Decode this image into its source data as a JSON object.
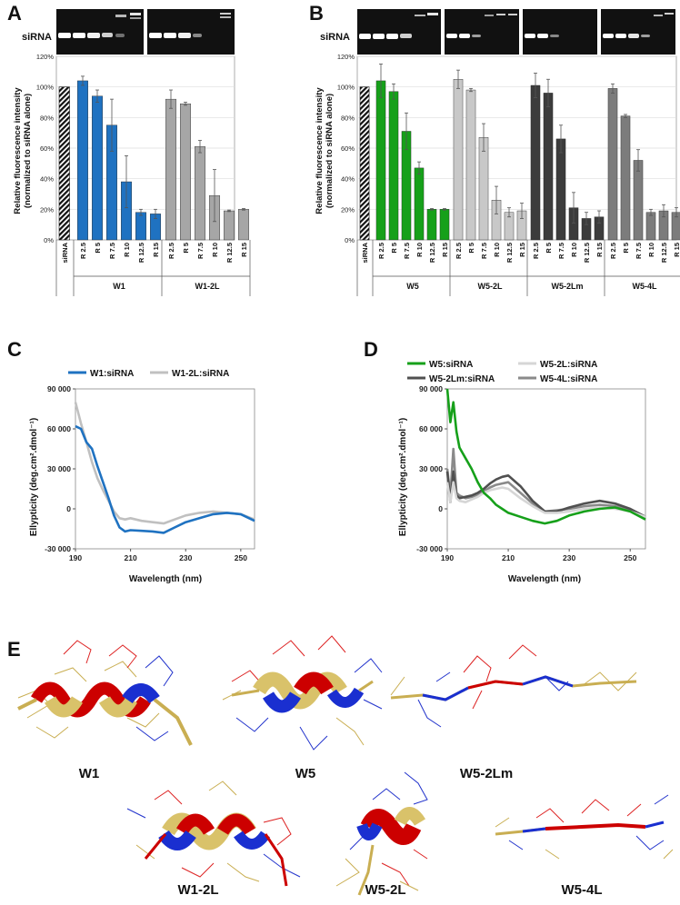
{
  "panels": {
    "a": "A",
    "b": "B",
    "c": "C",
    "d": "D",
    "e": "E"
  },
  "gel_label": "siRNA",
  "y_axis_label_line1": "Relative fluorescence intensity",
  "y_axis_label_line2": "(normalized to siRNA alone)",
  "cd_y_label": "Ellypticity (deg.cm².dmol⁻¹)",
  "cd_x_label": "Wavelength (nm)",
  "chart_data": [
    {
      "id": "A",
      "type": "bar",
      "ylim": [
        0,
        120
      ],
      "yticks": [
        "0%",
        "20%",
        "40%",
        "60%",
        "80%",
        "100%",
        "120%"
      ],
      "reference": {
        "label": "siRNA",
        "value": 100
      },
      "groups": [
        {
          "name": "W1",
          "color": "#1f72c1",
          "categories": [
            "R 2.5",
            "R 5",
            "R 7.5",
            "R 10",
            "R 12.5",
            "R 15"
          ],
          "values": [
            104,
            94,
            75,
            38,
            18,
            17
          ],
          "errors": [
            3,
            4,
            17,
            17,
            2,
            3
          ]
        },
        {
          "name": "W1-2L",
          "color": "#a6a6a6",
          "categories": [
            "R 2.5",
            "R 5",
            "R 7.5",
            "R 10",
            "R 12.5",
            "R 15"
          ],
          "values": [
            92,
            89,
            61,
            29,
            19,
            20
          ],
          "errors": [
            6,
            1,
            4,
            17,
            0.5,
            0.5
          ]
        }
      ]
    },
    {
      "id": "B",
      "type": "bar",
      "ylim": [
        0,
        120
      ],
      "yticks": [
        "0%",
        "20%",
        "40%",
        "60%",
        "80%",
        "100%",
        "120%"
      ],
      "reference": {
        "label": "siRNA",
        "value": 100
      },
      "groups": [
        {
          "name": "W5",
          "color": "#16a01a",
          "categories": [
            "R 2.5",
            "R 5",
            "R 7.5",
            "R 10",
            "R 12.5",
            "R 15"
          ],
          "values": [
            104,
            97,
            71,
            47,
            20,
            20
          ],
          "errors": [
            11,
            5,
            12,
            4,
            0.5,
            0.5
          ]
        },
        {
          "name": "W5-2L",
          "color": "#c8c8c8",
          "categories": [
            "R 2.5",
            "R 5",
            "R 7.5",
            "R 10",
            "R 12.5",
            "R 15"
          ],
          "values": [
            105,
            98,
            67,
            26,
            18,
            19
          ],
          "errors": [
            6,
            1,
            9,
            9,
            3,
            5
          ]
        },
        {
          "name": "W5-2Lm",
          "color": "#3c3c3c",
          "categories": [
            "R 2.5",
            "R 5",
            "R 7.5",
            "R 10",
            "R 12.5",
            "R 15"
          ],
          "values": [
            101,
            96,
            66,
            21,
            14,
            15
          ],
          "errors": [
            8,
            9,
            9,
            10,
            4,
            4
          ]
        },
        {
          "name": "W5-4L",
          "color": "#7c7c7c",
          "categories": [
            "R 2.5",
            "R 5",
            "R 7.5",
            "R 10",
            "R 12.5",
            "R 15"
          ],
          "values": [
            99,
            81,
            52,
            18,
            19,
            18
          ],
          "errors": [
            3,
            1,
            7,
            2,
            4,
            3
          ]
        }
      ]
    },
    {
      "id": "C",
      "type": "line",
      "xlim": [
        190,
        255
      ],
      "ylim": [
        -30000,
        90000
      ],
      "xticks": [
        "190",
        "210",
        "230",
        "250"
      ],
      "yticks": [
        "-30 000",
        "0",
        "30 000",
        "60 000",
        "90 000"
      ],
      "series": [
        {
          "name": "W1:siRNA",
          "color": "#1f72c1",
          "x": [
            190,
            192,
            194,
            196,
            198,
            200,
            202,
            204,
            206,
            208,
            210,
            214,
            218,
            222,
            226,
            230,
            235,
            240,
            245,
            250,
            255
          ],
          "y": [
            62000,
            60000,
            50000,
            45000,
            32000,
            20000,
            8000,
            -5000,
            -14000,
            -17000,
            -16000,
            -16500,
            -17000,
            -18000,
            -14000,
            -10000,
            -7000,
            -4000,
            -3000,
            -4000,
            -9000
          ]
        },
        {
          "name": "W1-2L:siRNA",
          "color": "#c0c0c0",
          "x": [
            190,
            192,
            194,
            196,
            198,
            200,
            202,
            204,
            206,
            208,
            210,
            214,
            218,
            222,
            226,
            230,
            235,
            240,
            245,
            250,
            255
          ],
          "y": [
            80000,
            64000,
            50000,
            35000,
            23000,
            14000,
            6000,
            -2000,
            -7000,
            -8000,
            -7000,
            -9000,
            -10000,
            -11000,
            -8000,
            -5000,
            -3000,
            -2000,
            -3000,
            -4000,
            -8000
          ]
        }
      ]
    },
    {
      "id": "D",
      "type": "line",
      "xlim": [
        190,
        255
      ],
      "ylim": [
        -30000,
        90000
      ],
      "xticks": [
        "190",
        "210",
        "230",
        "250"
      ],
      "yticks": [
        "-30 000",
        "0",
        "30 000",
        "60 000",
        "90 000"
      ],
      "series": [
        {
          "name": "W5:siRNA",
          "color": "#16a01a",
          "x": [
            190,
            191,
            192,
            193,
            194,
            196,
            198,
            200,
            202,
            204,
            206,
            208,
            210,
            214,
            218,
            222,
            226,
            230,
            235,
            240,
            245,
            250,
            255
          ],
          "y": [
            90000,
            65000,
            80000,
            58000,
            46000,
            38000,
            30000,
            20000,
            12000,
            8000,
            3000,
            0,
            -3000,
            -6000,
            -9000,
            -11000,
            -9000,
            -5000,
            -2000,
            0,
            1000,
            -2000,
            -8000
          ]
        },
        {
          "name": "W5-2L:siRNA",
          "color": "#d6d6d6",
          "x": [
            190,
            191,
            192,
            193,
            194,
            196,
            198,
            200,
            202,
            204,
            206,
            208,
            210,
            214,
            218,
            222,
            226,
            230,
            235,
            240,
            245,
            250,
            255
          ],
          "y": [
            20000,
            5000,
            20000,
            8000,
            6000,
            5000,
            7000,
            9000,
            12000,
            14000,
            15000,
            16000,
            15000,
            8000,
            2000,
            -3000,
            -3000,
            -2000,
            0,
            1000,
            0,
            -2000,
            -6000
          ]
        },
        {
          "name": "W5-2Lm:siRNA",
          "color": "#505050",
          "x": [
            190,
            191,
            192,
            193,
            194,
            196,
            198,
            200,
            202,
            204,
            206,
            208,
            210,
            214,
            218,
            222,
            226,
            230,
            235,
            240,
            245,
            250,
            255
          ],
          "y": [
            28000,
            5000,
            28000,
            10000,
            8000,
            9000,
            10000,
            12000,
            15000,
            19000,
            22000,
            24000,
            25000,
            17000,
            6000,
            -2000,
            -2000,
            1000,
            4000,
            6000,
            4000,
            0,
            -6000
          ]
        },
        {
          "name": "W5-4L:siRNA",
          "color": "#8a8a8a",
          "x": [
            190,
            191,
            192,
            193,
            194,
            196,
            198,
            200,
            202,
            204,
            206,
            208,
            210,
            214,
            218,
            222,
            226,
            230,
            235,
            240,
            245,
            250,
            255
          ],
          "y": [
            30000,
            10000,
            45000,
            12000,
            10000,
            8000,
            9000,
            10000,
            13000,
            16000,
            18000,
            19000,
            20000,
            12000,
            4000,
            -2000,
            -1000,
            0,
            2000,
            3000,
            2000,
            -1000,
            -6000
          ]
        }
      ]
    }
  ],
  "structures": [
    "W1",
    "W5",
    "W5-2Lm",
    "W1-2L",
    "W5-2L",
    "W5-4L"
  ]
}
